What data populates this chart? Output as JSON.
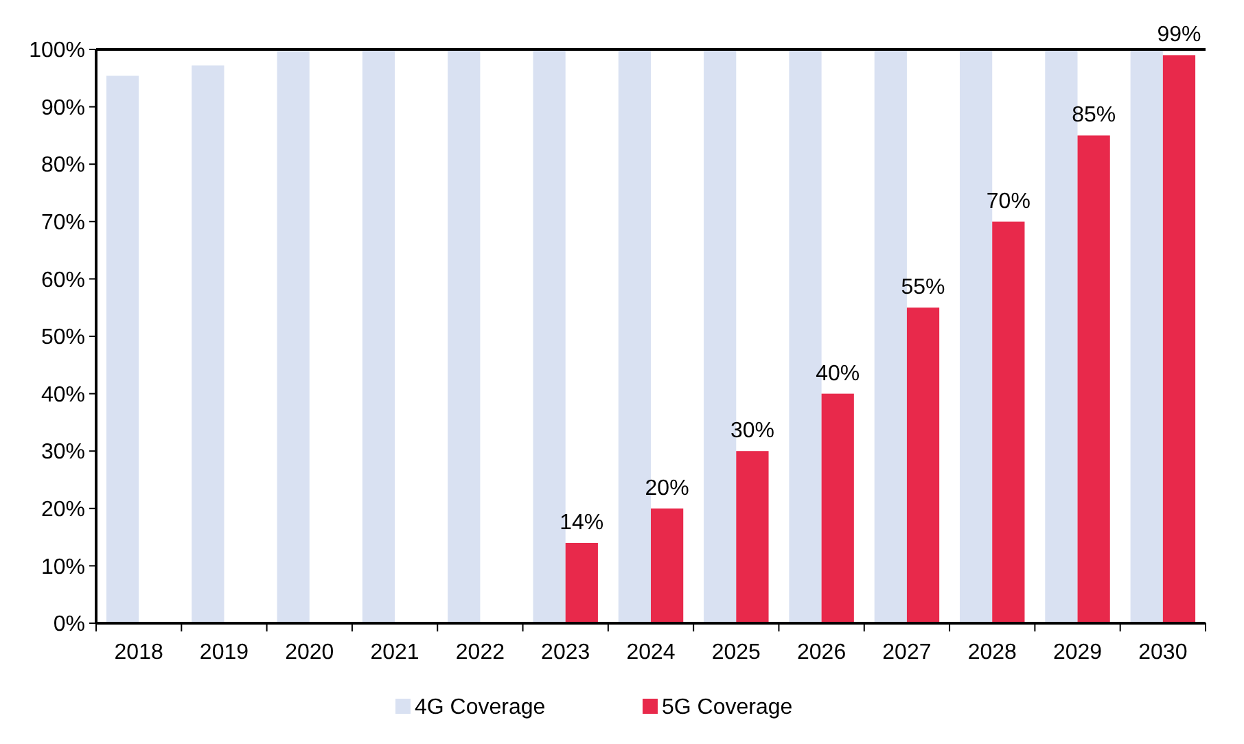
{
  "chart_data": {
    "type": "bar",
    "categories": [
      "2018",
      "2019",
      "2020",
      "2021",
      "2022",
      "2023",
      "2024",
      "2025",
      "2026",
      "2027",
      "2028",
      "2029",
      "2030"
    ],
    "series": [
      {
        "name": "4G Coverage",
        "color": "#d9e1f2",
        "values": [
          95.4,
          97.2,
          99.7,
          100,
          100,
          100,
          100,
          100,
          100,
          100,
          100,
          100,
          100
        ]
      },
      {
        "name": "5G Coverage",
        "color": "#e8294b",
        "values": [
          null,
          null,
          null,
          null,
          null,
          14,
          20,
          30,
          40,
          55,
          70,
          85,
          99
        ],
        "value_labels": [
          null,
          null,
          null,
          null,
          null,
          "14%",
          "20%",
          "30%",
          "40%",
          "55%",
          "70%",
          "85%",
          "99%"
        ]
      }
    ],
    "ylim": [
      0,
      100
    ],
    "yticks": [
      {
        "value": 0,
        "label": "0%"
      },
      {
        "value": 10,
        "label": "10%"
      },
      {
        "value": 20,
        "label": "20%"
      },
      {
        "value": 30,
        "label": "30%"
      },
      {
        "value": 40,
        "label": "40%"
      },
      {
        "value": 50,
        "label": "50%"
      },
      {
        "value": 60,
        "label": "60%"
      },
      {
        "value": 70,
        "label": "70%"
      },
      {
        "value": 80,
        "label": "80%"
      },
      {
        "value": 90,
        "label": "90%"
      },
      {
        "value": 100,
        "label": "100%"
      }
    ],
    "grid": false,
    "legend": "bottom"
  }
}
